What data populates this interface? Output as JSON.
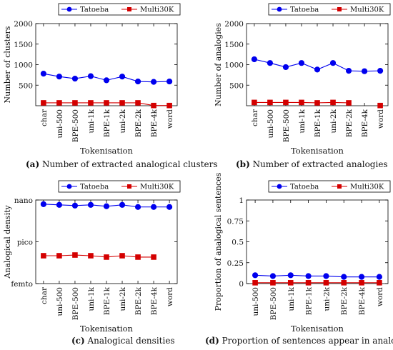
{
  "colors": {
    "series1": "#0000ee",
    "series2": "#d40000",
    "axis": "#000000"
  },
  "legend_placement": "top-center",
  "chart_data": [
    {
      "type": "line",
      "label": "(a)",
      "caption": "Number of extracted analogical clusters",
      "xlabel": "Tokenisation",
      "ylabel": "Number of clusters",
      "categories": [
        "char",
        "uni-500",
        "BPE-500",
        "uni-1k",
        "BPE-1k",
        "uni-2k",
        "BPE-2k",
        "BPE-4k",
        "word"
      ],
      "ylim": [
        0,
        2000
      ],
      "yticks": [
        500,
        1000,
        1500,
        2000
      ],
      "ytick_labels": [
        "500",
        "1000",
        "1500",
        "2000"
      ],
      "grid": false,
      "series": [
        {
          "name": "Tatoeba",
          "values": [
            780,
            710,
            660,
            720,
            620,
            710,
            590,
            580,
            590
          ]
        },
        {
          "name": "Multi30K",
          "values": [
            70,
            70,
            70,
            70,
            70,
            70,
            70,
            5,
            5
          ]
        }
      ]
    },
    {
      "type": "line",
      "label": "(b)",
      "caption": "Number of extracted analogies",
      "xlabel": "Tokenisation",
      "ylabel": "Number of analogies",
      "categories": [
        "char",
        "uni-500",
        "BPE-500",
        "uni-1k",
        "BPE-1k",
        "uni-2k",
        "BPE-2k",
        "BPE-4k",
        "word"
      ],
      "ylim": [
        0,
        2000
      ],
      "yticks": [
        500,
        1000,
        1500,
        2000
      ],
      "ytick_labels": [
        "500",
        "1000",
        "1500",
        "2000"
      ],
      "grid": false,
      "series": [
        {
          "name": "Tatoeba",
          "values": [
            1130,
            1040,
            940,
            1040,
            880,
            1040,
            850,
            840,
            850
          ]
        },
        {
          "name": "Multi30K",
          "values": [
            80,
            80,
            80,
            80,
            70,
            80,
            70,
            null,
            5
          ]
        }
      ]
    },
    {
      "type": "line",
      "label": "(c)",
      "caption": "Analogical densities",
      "xlabel": "Tokenisation",
      "ylabel": "Analogical density",
      "categories": [
        "char",
        "uni-500",
        "BPE-500",
        "uni-1k",
        "BPE-1k",
        "uni-2k",
        "BPE-2k",
        "BPE-4k",
        "word"
      ],
      "yscale": "log",
      "ylim": [
        -15,
        -9
      ],
      "yticks": [
        -15,
        -12,
        -9
      ],
      "ytick_labels": [
        "femto",
        "pico",
        "nano"
      ],
      "grid": false,
      "series": [
        {
          "name": "Tatoeba",
          "values": [
            -9.3,
            -9.35,
            -9.4,
            -9.35,
            -9.45,
            -9.35,
            -9.5,
            -9.5,
            -9.5
          ]
        },
        {
          "name": "Multi30K",
          "values": [
            -13.0,
            -13.0,
            -12.95,
            -13.0,
            -13.1,
            -13.0,
            -13.1,
            -13.1,
            null
          ]
        }
      ]
    },
    {
      "type": "line",
      "label": "(d)",
      "caption": "Proportion of sentences appear in analogy",
      "xlabel": "Tokenisation",
      "ylabel": "Proportion of analogical sentences",
      "categories": [
        "uni-500",
        "BPE-500",
        "uni-1k",
        "BPE-1k",
        "uni-2k",
        "BPE-2k",
        "BPE-4k",
        "word"
      ],
      "ylim": [
        0,
        1
      ],
      "yticks": [
        0,
        0.25,
        0.5,
        0.75,
        1
      ],
      "ytick_labels": [
        "0",
        "0.25",
        "0.5",
        "0.75",
        "1"
      ],
      "grid": false,
      "series": [
        {
          "name": "Tatoeba",
          "values": [
            0.1,
            0.09,
            0.1,
            0.09,
            0.09,
            0.08,
            0.08,
            0.08
          ]
        },
        {
          "name": "Multi30K",
          "values": [
            0.01,
            0.01,
            0.01,
            0.01,
            0.01,
            0.01,
            0.01,
            0.01
          ]
        }
      ]
    }
  ]
}
